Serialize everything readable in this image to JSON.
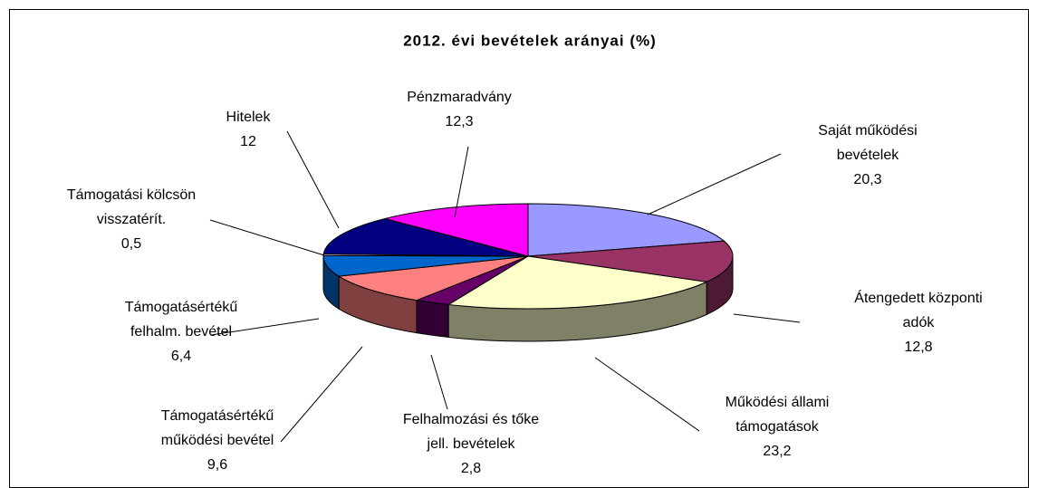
{
  "chart_data": {
    "type": "pie",
    "title": "2012. évi bevételek arányai (%)",
    "categories": [
      "Saját működési\nbevételek",
      "Átengedett központi\nadók",
      "Működési állami\ntámogatások",
      "Felhalmozási és tőke\njell. bevételek",
      "Támogatásértékű\nműködési bevétel",
      "Támogatásértékű\nfelhalm. bevétel",
      "Támogatási kölcsön\nvisszatérít.",
      "Hitelek",
      "Pénzmaradvány"
    ],
    "values": [
      20.3,
      12.8,
      23.2,
      2.8,
      9.6,
      6.4,
      0.5,
      12,
      12.3
    ],
    "value_labels": [
      "20,3",
      "12,8",
      "23,2",
      "2,8",
      "9,6",
      "6,4",
      "0,5",
      "12",
      "12,3"
    ],
    "colors": [
      "#9999FF",
      "#993366",
      "#FFFFCC",
      "#660066",
      "#FF8080",
      "#0066CC",
      "#CCCCFF",
      "#000080",
      "#FF00FF"
    ]
  }
}
